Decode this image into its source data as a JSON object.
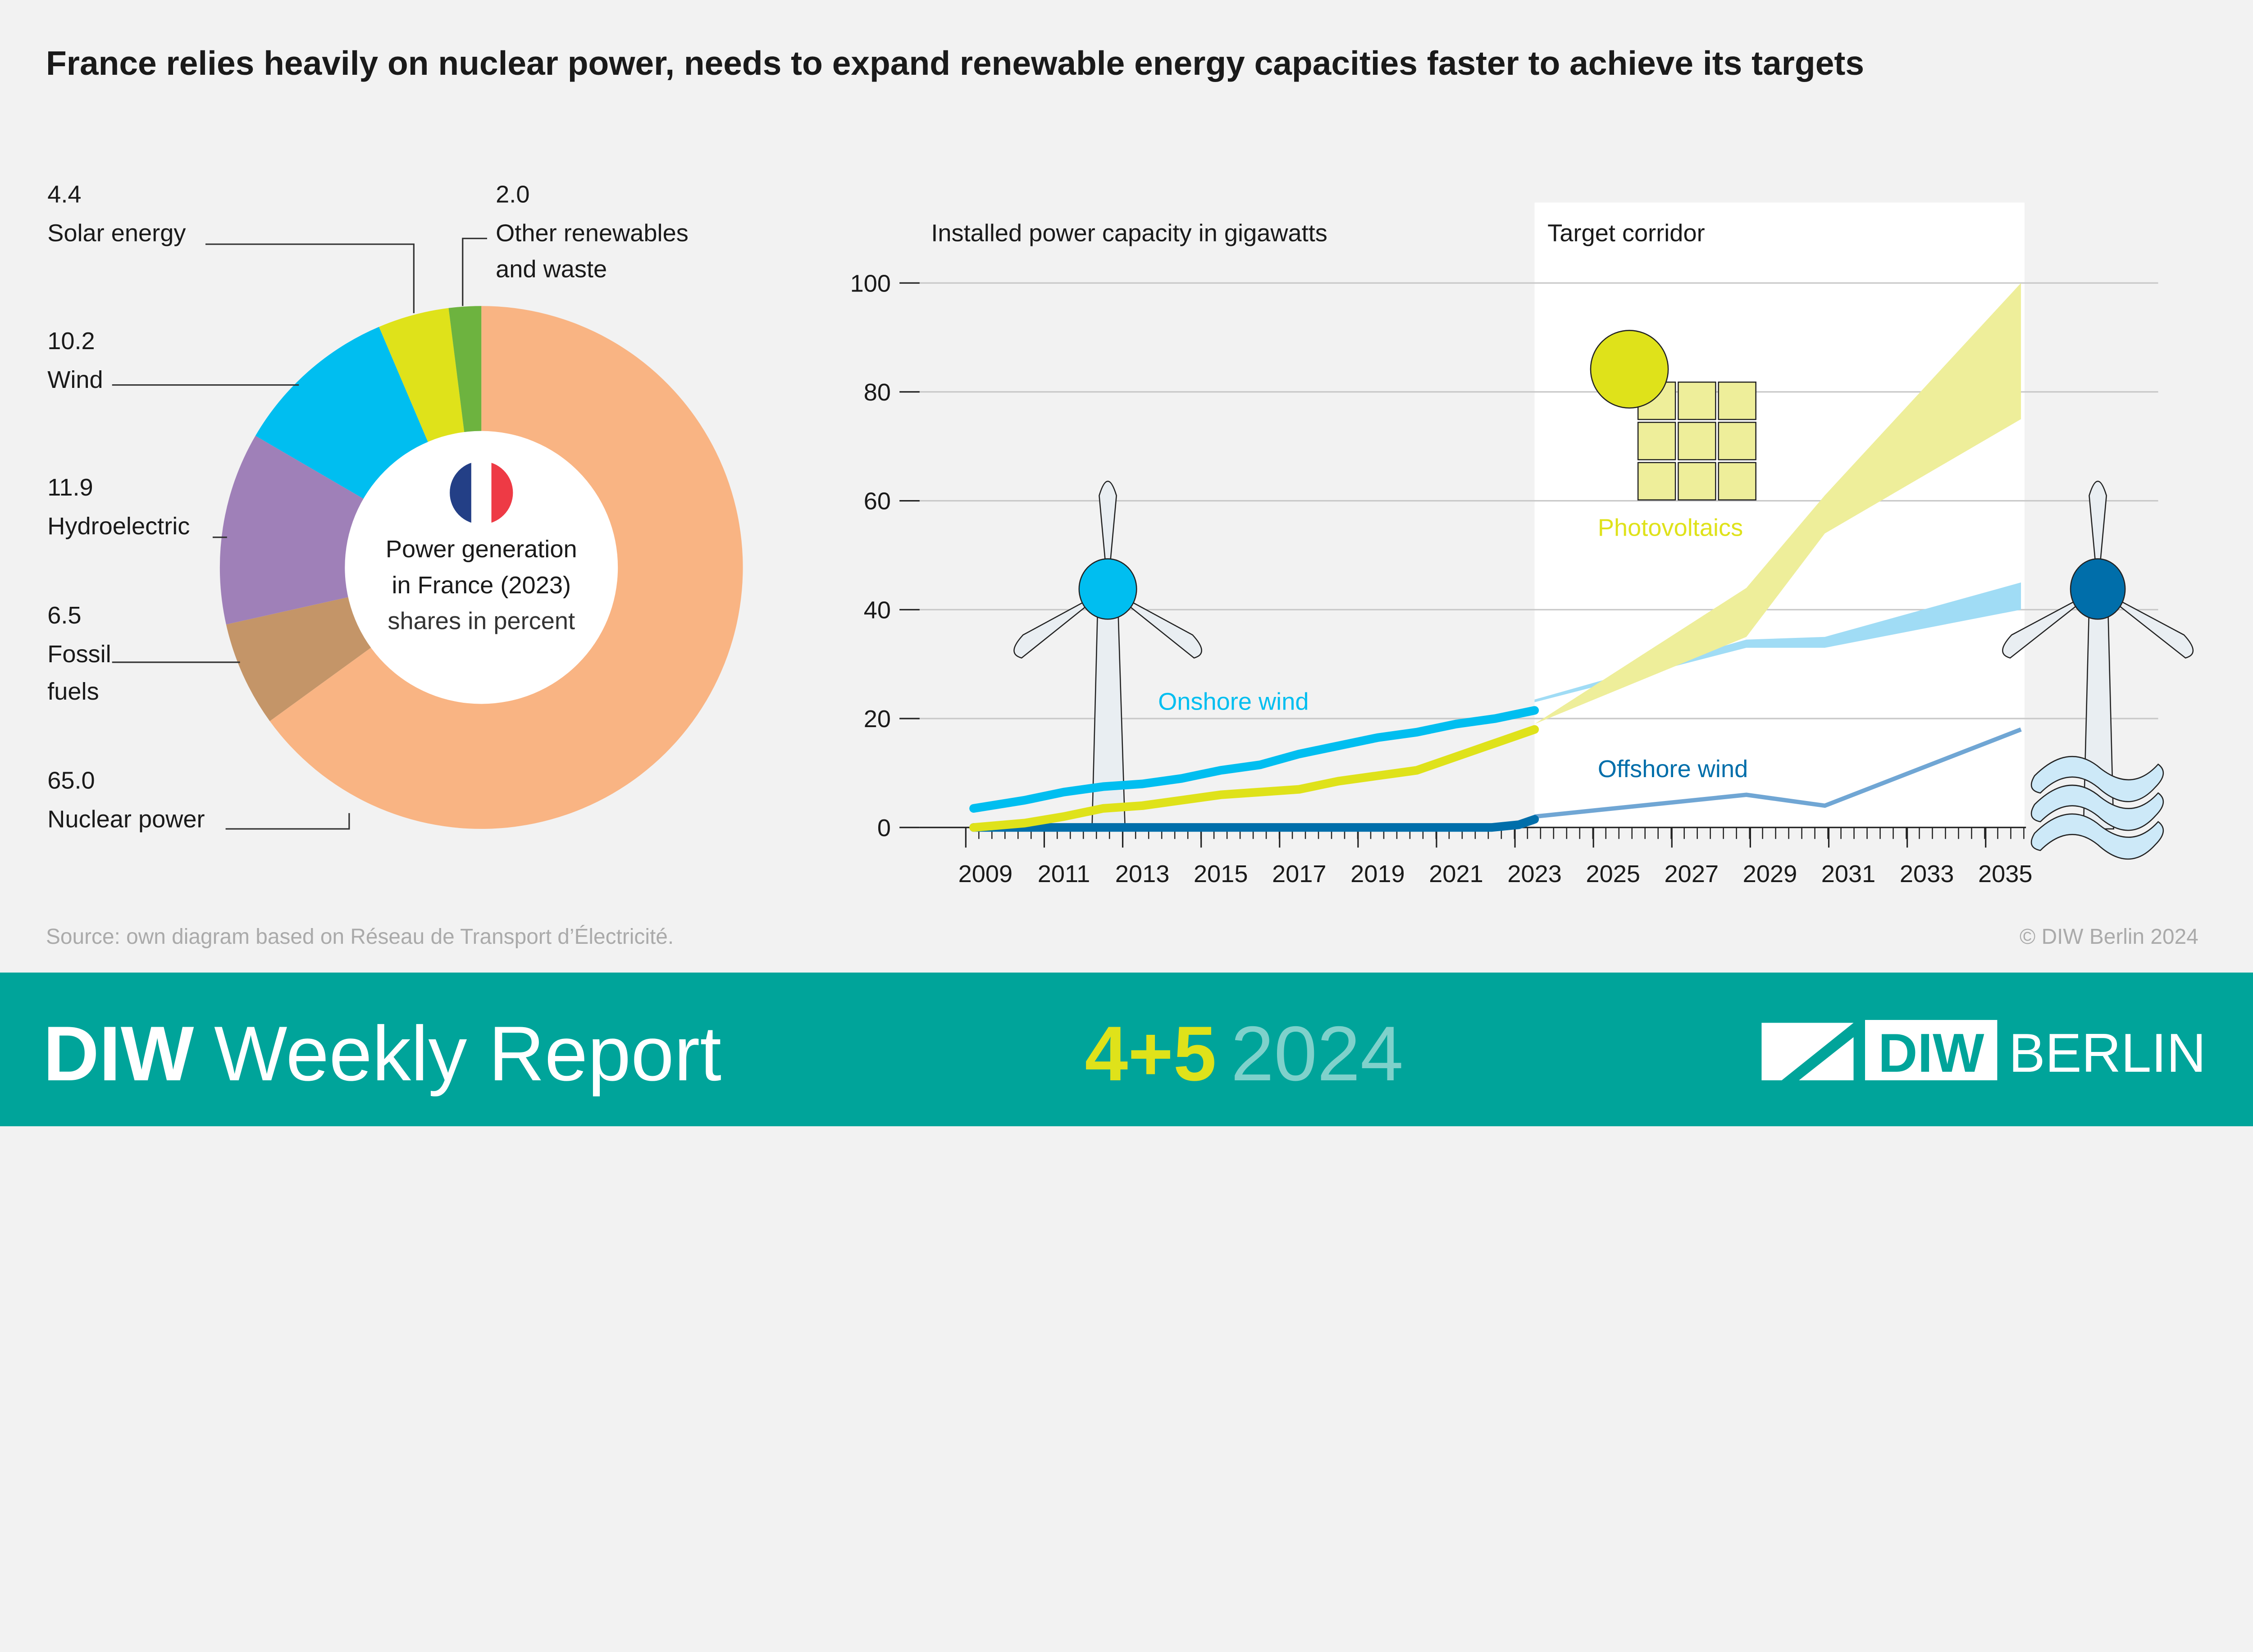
{
  "title": "France relies heavily on nuclear power, needs to expand renewable energy capacities faster to achieve its targets",
  "source": "Source: own diagram based on Réseau de Transport d’Électricité.",
  "copyright": "© DIW Berlin 2024",
  "footer": {
    "brand_bold": "DIW",
    "brand_rest": "Weekly Report",
    "issue": "4+5",
    "year": "2024",
    "logo_text_bold": "DIW",
    "logo_text": "BERLIN"
  },
  "colors": {
    "background": "#f2f2f2",
    "footer": "#00a49a",
    "nuclear": "#f9b483",
    "fossil": "#c49568",
    "hydro": "#9f80b8",
    "wind": "#00bef0",
    "solar": "#dfe21a",
    "other": "#6db33f",
    "offshore": "#006eaa",
    "pv_corridor": "#eeee9a",
    "onshore_corridor": "#a0dcf5",
    "offshore_target": "#70a6d4"
  },
  "chart_data": [
    {
      "type": "pie",
      "center_label": [
        "Power generation",
        "in France (2023)",
        "shares in percent"
      ],
      "center_icon": "france-flag-icon",
      "slices": [
        {
          "label": "Nuclear power",
          "value": 65.0,
          "value_text": "65.0"
        },
        {
          "label": "Fossil fuels",
          "label_lines": [
            "Fossil",
            "fuels"
          ],
          "value": 6.5,
          "value_text": "6.5"
        },
        {
          "label": "Hydroelectric",
          "value": 11.9,
          "value_text": "11.9"
        },
        {
          "label": "Wind",
          "value": 10.2,
          "value_text": "10.2"
        },
        {
          "label": "Solar energy",
          "value": 4.4,
          "value_text": "4.4"
        },
        {
          "label": "Other renewables and waste",
          "label_lines": [
            "Other renewables",
            "and waste"
          ],
          "value": 2.0,
          "value_text": "2.0"
        }
      ]
    },
    {
      "type": "line",
      "ylabel": "Installed power capacity in gigawatts",
      "corridor_label": "Target corridor",
      "ylim": [
        0,
        100
      ],
      "yticks": [
        0,
        20,
        40,
        60,
        80,
        100
      ],
      "xticks": [
        2009,
        2011,
        2013,
        2015,
        2017,
        2019,
        2021,
        2023,
        2025,
        2027,
        2029,
        2031,
        2033,
        2035
      ],
      "xlim": [
        2008.3,
        2035.5
      ],
      "grid": true,
      "series": [
        {
          "name": "Onshore wind",
          "x": [
            2008.7,
            2010,
            2011,
            2012,
            2013,
            2014,
            2015,
            2016,
            2017,
            2018,
            2019,
            2020,
            2021,
            2022,
            2023
          ],
          "y": [
            3.5,
            5,
            6.5,
            7.5,
            8,
            9,
            10.5,
            11.5,
            13.5,
            15,
            16.5,
            17.5,
            19,
            20,
            21.5
          ]
        },
        {
          "name": "Photovoltaics",
          "x": [
            2008.7,
            2010,
            2011,
            2012,
            2013,
            2014,
            2015,
            2016,
            2017,
            2018,
            2019,
            2020,
            2021,
            2022,
            2023
          ],
          "y": [
            0,
            0.8,
            2,
            3.5,
            4,
            5,
            6,
            6.5,
            7,
            8.5,
            9.5,
            10.5,
            13,
            15.5,
            18
          ]
        },
        {
          "name": "Offshore wind",
          "x": [
            2008.7,
            2021.9,
            2022.6,
            2023
          ],
          "y": [
            0,
            0,
            0.5,
            1.5
          ]
        }
      ],
      "targets": [
        {
          "series": "Photovoltaics",
          "x": [
            2023,
            2028.4,
            2030.4,
            2035.4
          ],
          "low": [
            19,
            35,
            54,
            75
          ],
          "high": [
            19,
            44,
            61,
            100
          ]
        },
        {
          "series": "Onshore wind",
          "x": [
            2023,
            2028.4,
            2030.4,
            2035.4
          ],
          "low": [
            23,
            33,
            33,
            40
          ],
          "high": [
            23.5,
            34.5,
            35,
            45
          ]
        },
        {
          "series": "Offshore wind",
          "x": [
            2023,
            2028.4,
            2030.4,
            2035.4
          ],
          "y": [
            2,
            6,
            4,
            18
          ]
        }
      ]
    }
  ]
}
